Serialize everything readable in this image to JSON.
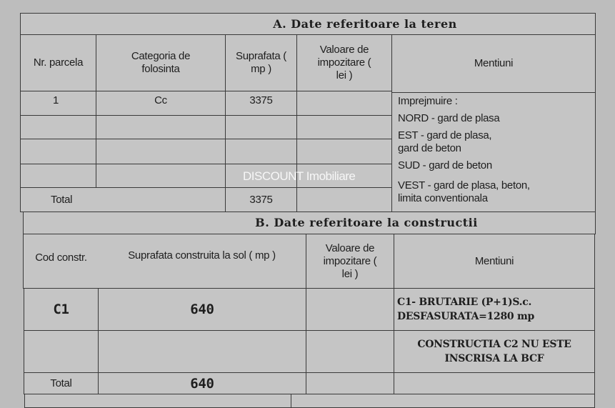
{
  "sectionA": {
    "title": "A. Date referitoare la teren",
    "headers": [
      "Nr. parcela",
      "Categoria de folosinta",
      "Suprafata ( mp )",
      "Valoare de impozitare ( lei )",
      "Mentiuni"
    ],
    "rows": [
      {
        "nr": "1",
        "categoria": "Cc",
        "suprafata": "3375",
        "valoare": ""
      }
    ],
    "mentiuni": [
      "Imprejmuire :",
      "NORD - gard  de plasa",
      "EST - gard de plasa,",
      "gard de beton",
      "SUD - gard de beton",
      "VEST - gard de plasa, beton,",
      "limita conventionala"
    ],
    "total_label": "Total",
    "total_suprafata": "3375"
  },
  "sectionB": {
    "title": "B. Date referitoare la constructii",
    "headers": [
      "Cod constr.",
      "Suprafata construita la sol ( mp )",
      "Valoare de impozitare ( lei )",
      "Mentiuni"
    ],
    "rows": [
      {
        "cod": "C1",
        "suprafata": "640",
        "mentiuni": "C1- BRUTARIE (P+1)S.c. DESFASURATA=1280 mp"
      },
      {
        "cod": "",
        "suprafata": "",
        "mentiuni": "CONSTRUCTIA C2 NU ESTE INSCRISA LA BCF"
      }
    ],
    "total_label": "Total",
    "total_suprafata": "640"
  },
  "watermark": "DISCOUNT Imobiliare"
}
